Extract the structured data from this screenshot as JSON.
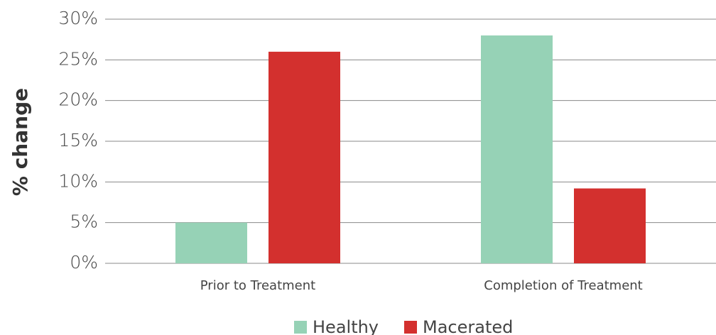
{
  "chart_data": {
    "type": "bar",
    "y_label": "% change",
    "categories": [
      "Prior to Treatment",
      "Completion of Treatment"
    ],
    "series": [
      {
        "name": "Healthy",
        "color": "#96d2b6",
        "values": [
          5,
          28
        ]
      },
      {
        "name": "Macerated",
        "color": "#d3302e",
        "values": [
          26,
          9.2
        ]
      }
    ],
    "ylim": [
      0,
      30
    ],
    "yticks": [
      {
        "value": 0,
        "label": "0%"
      },
      {
        "value": 5,
        "label": "5%"
      },
      {
        "value": 10,
        "label": "10%"
      },
      {
        "value": 15,
        "label": "15%"
      },
      {
        "value": 20,
        "label": "20%"
      },
      {
        "value": 25,
        "label": "25%"
      },
      {
        "value": 30,
        "label": "30%"
      }
    ],
    "grid": true,
    "legend": "bottom"
  }
}
